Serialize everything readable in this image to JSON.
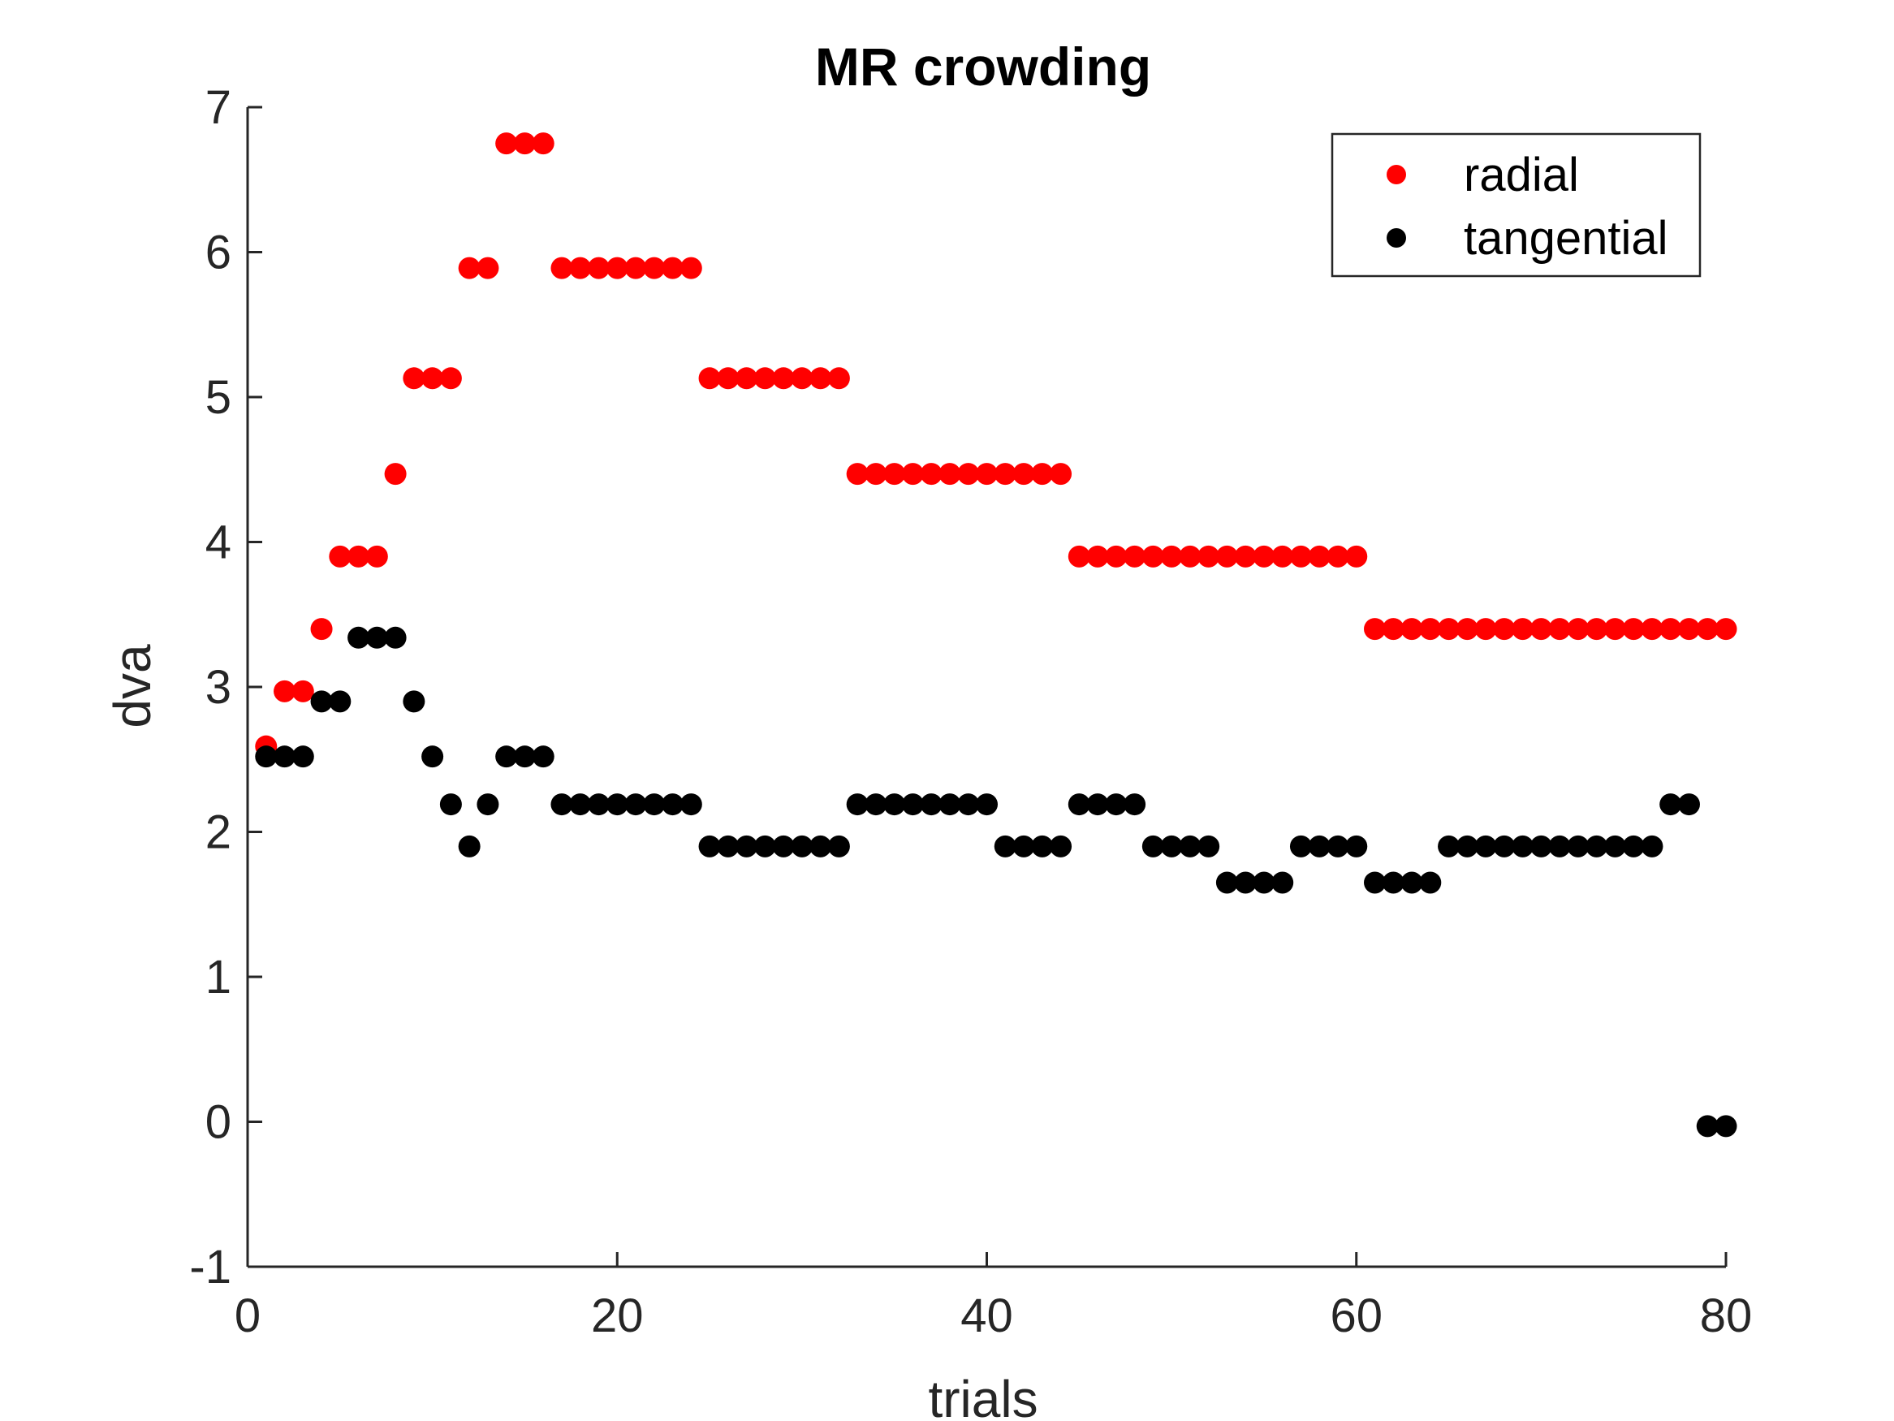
{
  "chart_data": {
    "type": "scatter",
    "title": "MR crowding",
    "xlabel": "trials",
    "ylabel": "dva",
    "xlim": [
      0,
      80
    ],
    "ylim": [
      -1,
      7
    ],
    "xticks": [
      0,
      20,
      40,
      60,
      80
    ],
    "yticks": [
      -1,
      0,
      1,
      2,
      3,
      4,
      5,
      6,
      7
    ],
    "grid": false,
    "legend_position": "top-right",
    "series": [
      {
        "name": "radial",
        "color": "#ff0000",
        "x": [
          1,
          2,
          3,
          4,
          5,
          6,
          7,
          8,
          9,
          10,
          11,
          12,
          13,
          14,
          15,
          16,
          17,
          18,
          19,
          20,
          21,
          22,
          23,
          24,
          25,
          26,
          27,
          28,
          29,
          30,
          31,
          32,
          33,
          34,
          35,
          36,
          37,
          38,
          39,
          40,
          41,
          42,
          43,
          44,
          45,
          46,
          47,
          48,
          49,
          50,
          51,
          52,
          53,
          54,
          55,
          56,
          57,
          58,
          59,
          60,
          61,
          62,
          63,
          64,
          65,
          66,
          67,
          68,
          69,
          70,
          71,
          72,
          73,
          74,
          75,
          76,
          77,
          78,
          79,
          80
        ],
        "y": [
          2.59,
          2.97,
          2.97,
          3.4,
          3.9,
          3.9,
          3.9,
          4.47,
          5.13,
          5.13,
          5.13,
          5.89,
          5.89,
          6.75,
          6.75,
          6.75,
          5.89,
          5.89,
          5.89,
          5.89,
          5.89,
          5.89,
          5.89,
          5.89,
          5.13,
          5.13,
          5.13,
          5.13,
          5.13,
          5.13,
          5.13,
          5.13,
          4.47,
          4.47,
          4.47,
          4.47,
          4.47,
          4.47,
          4.47,
          4.47,
          4.47,
          4.47,
          4.47,
          4.47,
          3.9,
          3.9,
          3.9,
          3.9,
          3.9,
          3.9,
          3.9,
          3.9,
          3.9,
          3.9,
          3.9,
          3.9,
          3.9,
          3.9,
          3.9,
          3.9,
          3.4,
          3.4,
          3.4,
          3.4,
          3.4,
          3.4,
          3.4,
          3.4,
          3.4,
          3.4,
          3.4,
          3.4,
          3.4,
          3.4,
          3.4,
          3.4,
          3.4,
          3.4,
          3.4,
          3.4
        ]
      },
      {
        "name": "tangential",
        "color": "#000000",
        "x": [
          1,
          2,
          3,
          4,
          5,
          6,
          7,
          8,
          9,
          10,
          11,
          12,
          13,
          14,
          15,
          16,
          17,
          18,
          19,
          20,
          21,
          22,
          23,
          24,
          25,
          26,
          27,
          28,
          29,
          30,
          31,
          32,
          33,
          34,
          35,
          36,
          37,
          38,
          39,
          40,
          41,
          42,
          43,
          44,
          45,
          46,
          47,
          48,
          49,
          50,
          51,
          52,
          53,
          54,
          55,
          56,
          57,
          58,
          59,
          60,
          61,
          62,
          63,
          64,
          65,
          66,
          67,
          68,
          69,
          70,
          71,
          72,
          73,
          74,
          75,
          76,
          77,
          78,
          79,
          80
        ],
        "y": [
          2.52,
          2.52,
          2.52,
          2.9,
          2.9,
          3.34,
          3.34,
          3.34,
          2.9,
          2.52,
          2.19,
          1.9,
          2.19,
          2.52,
          2.52,
          2.52,
          2.19,
          2.19,
          2.19,
          2.19,
          2.19,
          2.19,
          2.19,
          2.19,
          1.9,
          1.9,
          1.9,
          1.9,
          1.9,
          1.9,
          1.9,
          1.9,
          2.19,
          2.19,
          2.19,
          2.19,
          2.19,
          2.19,
          2.19,
          2.19,
          1.9,
          1.9,
          1.9,
          1.9,
          2.19,
          2.19,
          2.19,
          2.19,
          1.9,
          1.9,
          1.9,
          1.9,
          1.65,
          1.65,
          1.65,
          1.65,
          1.9,
          1.9,
          1.9,
          1.9,
          1.65,
          1.65,
          1.65,
          1.65,
          1.9,
          1.9,
          1.9,
          1.9,
          1.9,
          1.9,
          1.9,
          1.9,
          1.9,
          1.9,
          1.9,
          1.9,
          2.19,
          2.19,
          -0.03,
          -0.03
        ]
      }
    ]
  }
}
